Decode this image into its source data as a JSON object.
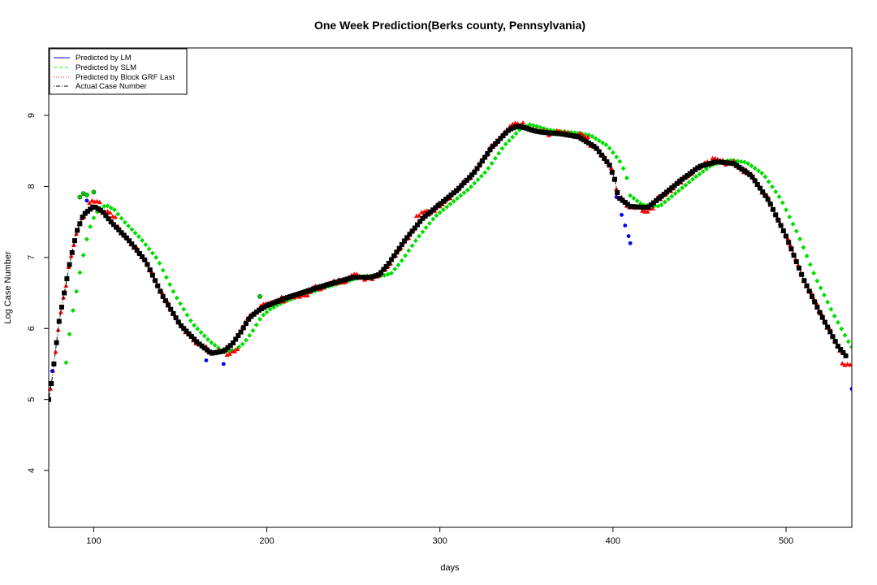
{
  "chart_data": {
    "type": "scatter",
    "title": "One Week Prediction(Berks county, Pennsylvania)",
    "xlabel": "days",
    "ylabel": "Log Case Number",
    "xlim": [
      74,
      538
    ],
    "ylim": [
      3.2,
      9.95
    ],
    "x_ticks": [
      100,
      200,
      300,
      400,
      500
    ],
    "y_ticks": [
      4,
      5,
      6,
      7,
      8,
      9
    ],
    "grid": false,
    "legend_position": "top-left",
    "legend": [
      {
        "label": "Predicted by LM",
        "color": "#0000ff",
        "line": "solid"
      },
      {
        "label": "Predicted by SLM",
        "color": "#00ff00",
        "line": "dashed"
      },
      {
        "label": "Predicted by Block GRF Last",
        "color": "#ff0000",
        "line": "dotted"
      },
      {
        "label": "Actual Case Number",
        "color": "#000000",
        "line": "dotdash"
      }
    ],
    "actual_knots": [
      [
        74,
        5.0
      ],
      [
        76,
        5.3
      ],
      [
        78,
        5.7
      ],
      [
        80,
        6.1
      ],
      [
        83,
        6.5
      ],
      [
        86,
        6.9
      ],
      [
        90,
        7.35
      ],
      [
        94,
        7.6
      ],
      [
        100,
        7.72
      ],
      [
        105,
        7.65
      ],
      [
        110,
        7.5
      ],
      [
        120,
        7.25
      ],
      [
        130,
        6.95
      ],
      [
        140,
        6.45
      ],
      [
        150,
        6.05
      ],
      [
        160,
        5.8
      ],
      [
        168,
        5.65
      ],
      [
        175,
        5.68
      ],
      [
        180,
        5.78
      ],
      [
        185,
        5.95
      ],
      [
        190,
        6.15
      ],
      [
        195,
        6.25
      ],
      [
        200,
        6.32
      ],
      [
        210,
        6.42
      ],
      [
        220,
        6.5
      ],
      [
        230,
        6.58
      ],
      [
        240,
        6.65
      ],
      [
        250,
        6.72
      ],
      [
        260,
        6.72
      ],
      [
        265,
        6.76
      ],
      [
        270,
        6.9
      ],
      [
        280,
        7.25
      ],
      [
        290,
        7.55
      ],
      [
        300,
        7.75
      ],
      [
        310,
        7.95
      ],
      [
        320,
        8.2
      ],
      [
        330,
        8.55
      ],
      [
        340,
        8.8
      ],
      [
        345,
        8.85
      ],
      [
        350,
        8.82
      ],
      [
        355,
        8.78
      ],
      [
        360,
        8.76
      ],
      [
        370,
        8.74
      ],
      [
        380,
        8.7
      ],
      [
        390,
        8.55
      ],
      [
        398,
        8.3
      ],
      [
        401,
        8.1
      ],
      [
        403,
        7.85
      ],
      [
        410,
        7.72
      ],
      [
        420,
        7.7
      ],
      [
        430,
        7.9
      ],
      [
        440,
        8.1
      ],
      [
        450,
        8.28
      ],
      [
        460,
        8.35
      ],
      [
        470,
        8.32
      ],
      [
        480,
        8.15
      ],
      [
        490,
        7.8
      ],
      [
        500,
        7.3
      ],
      [
        510,
        6.7
      ],
      [
        520,
        6.2
      ],
      [
        530,
        5.75
      ],
      [
        535,
        5.6
      ]
    ],
    "lm_points": [
      [
        76,
        5.4
      ],
      [
        96,
        7.8
      ],
      [
        165,
        5.55
      ],
      [
        175,
        5.5
      ],
      [
        402,
        7.85
      ],
      [
        405,
        7.6
      ],
      [
        407,
        7.45
      ],
      [
        409,
        7.3
      ],
      [
        410,
        7.2
      ],
      [
        538,
        5.15
      ]
    ],
    "slm_shift_days": 7,
    "slm_extra_points": [
      [
        92,
        7.85
      ],
      [
        94,
        7.9
      ],
      [
        96,
        7.88
      ],
      [
        100,
        7.92
      ],
      [
        196,
        6.45
      ]
    ],
    "grf_bumps": [
      [
        100,
        7.88
      ],
      [
        110,
        7.7
      ],
      [
        180,
        5.55
      ],
      [
        200,
        6.4
      ],
      [
        220,
        6.4
      ],
      [
        250,
        6.78
      ],
      [
        290,
        7.7
      ],
      [
        345,
        8.92
      ],
      [
        372,
        8.8
      ],
      [
        383,
        8.78
      ],
      [
        420,
        7.62
      ],
      [
        460,
        8.42
      ],
      [
        535,
        5.35
      ]
    ]
  }
}
